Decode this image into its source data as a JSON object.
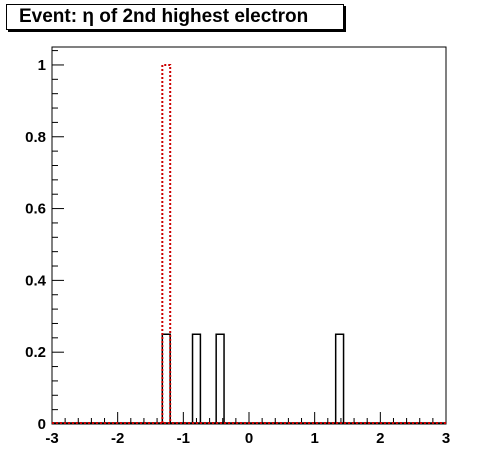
{
  "chart_data": {
    "type": "histogram",
    "title": "Event: η of 2nd highest electron",
    "xlabel": "",
    "ylabel": "",
    "xlim": [
      -3,
      3
    ],
    "ylim": [
      0,
      1.05
    ],
    "x_ticks": [
      -3,
      -2,
      -1,
      0,
      1,
      2,
      3
    ],
    "y_ticks": [
      0,
      0.2,
      0.4,
      0.6,
      0.8,
      1
    ],
    "x_tick_labels": [
      "-3",
      "-2",
      "-1",
      "0",
      "1",
      "2",
      "3"
    ],
    "y_tick_labels": [
      "0",
      "0.2",
      "0.4",
      "0.6",
      "0.8",
      "1"
    ],
    "series": [
      {
        "color": "#000000",
        "style": "solid",
        "bins": [
          {
            "x0": -1.32,
            "x1": -1.2,
            "value": 0.25
          },
          {
            "x0": -0.86,
            "x1": -0.74,
            "value": 0.25
          },
          {
            "x0": -0.5,
            "x1": -0.38,
            "value": 0.25
          },
          {
            "x0": 1.32,
            "x1": 1.44,
            "value": 0.25
          }
        ]
      },
      {
        "color": "#cc0000",
        "style": "dotted",
        "bins": [
          {
            "x0": -1.32,
            "x1": -1.2,
            "value": 1.0
          }
        ]
      }
    ]
  }
}
